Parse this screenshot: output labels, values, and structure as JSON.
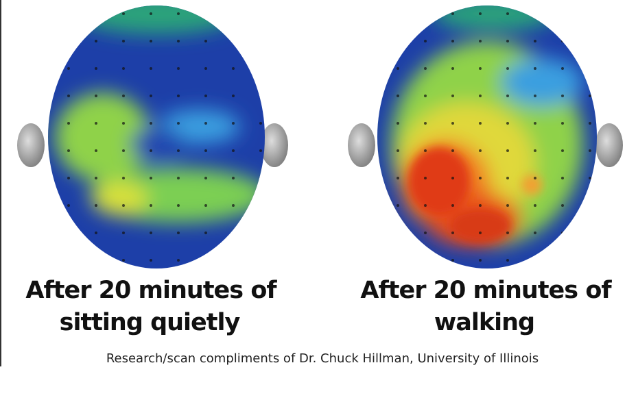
{
  "panels": [
    {
      "caption_lines": [
        "After 20 minutes of",
        "sitting quietly"
      ]
    },
    {
      "caption_lines": [
        "After 20 minutes of",
        "walking"
      ]
    }
  ],
  "credit": "Research/scan compliments of Dr. Chuck Hillman, University of Illinois"
}
